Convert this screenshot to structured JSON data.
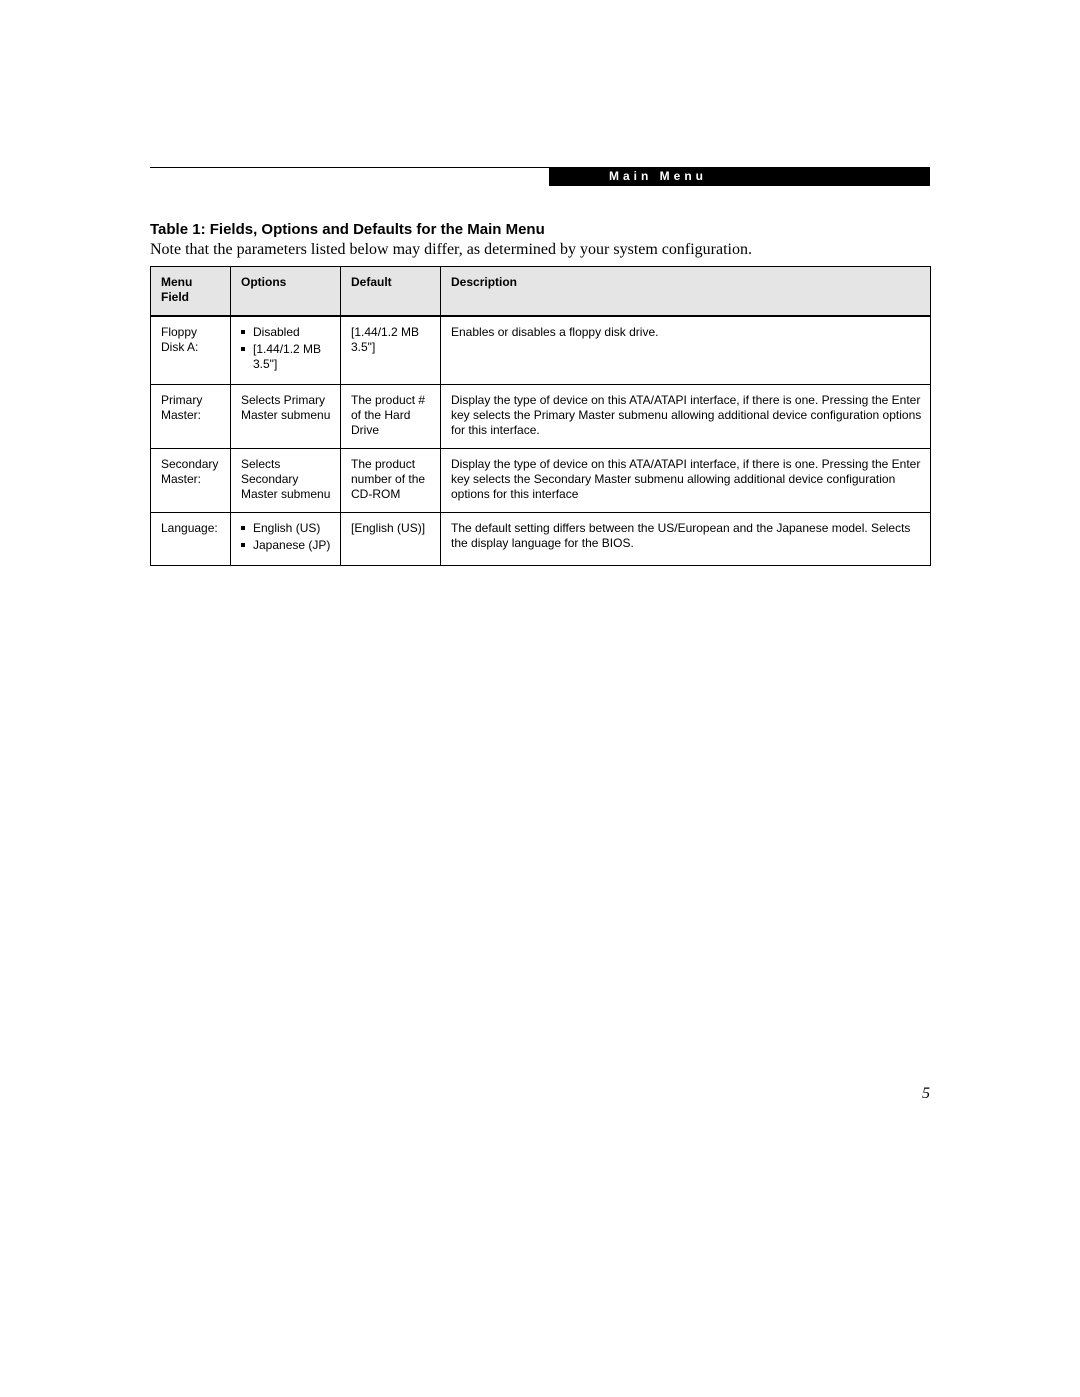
{
  "header": {
    "section_label": "Main Menu"
  },
  "title": "Table 1: Fields, Options and Defaults for the Main Menu",
  "note": "Note that the parameters listed below may differ, as determined by your system configuration.",
  "table": {
    "columns": {
      "menu_field": "Menu Field",
      "options": "Options",
      "default": "Default",
      "description": "Description"
    },
    "rows": [
      {
        "menu_field": "Floppy Disk A:",
        "options": [
          "Disabled",
          "[1.44/1.2 MB 3.5\"]"
        ],
        "default": "[1.44/1.2 MB 3.5\"]",
        "description": "Enables or disables a floppy disk drive."
      },
      {
        "menu_field": "Primary Master:",
        "options_text": "Selects Primary Master submenu",
        "default": "The product # of the Hard Drive",
        "description": "Display the type of device on this ATA/ATAPI interface, if there is one. Pressing the Enter key selects the Primary Master submenu allowing additional device configuration options for this interface."
      },
      {
        "menu_field": "Secondary Master:",
        "options_text": "Selects Secondary Master submenu",
        "default": "The product number of the CD-ROM",
        "description": "Display the type of device on this ATA/ATAPI interface, if there is one. Pressing the Enter key selects the Secondary Master submenu allowing additional device configuration options for this interface"
      },
      {
        "menu_field": "Language:",
        "options": [
          "English (US)",
          "Japanese (JP)"
        ],
        "default": "[English (US)]",
        "description": "The default setting differs between the US/European and the Japanese model. Selects the display language for the BIOS."
      }
    ]
  },
  "page_number": "5"
}
